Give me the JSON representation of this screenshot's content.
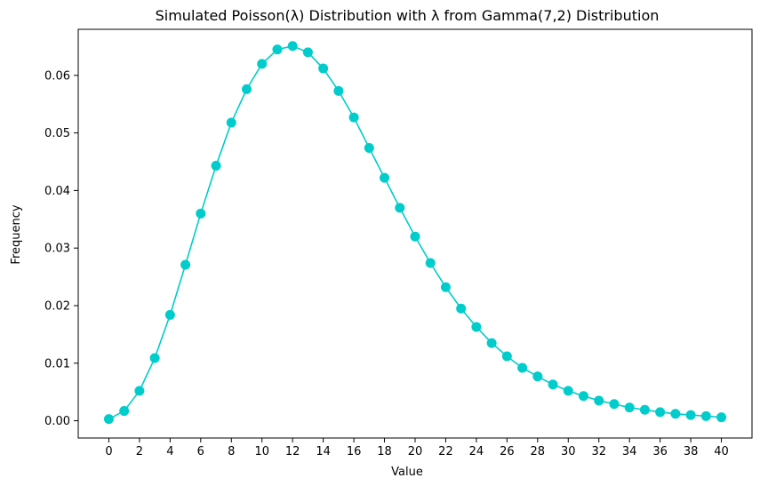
{
  "chart_data": {
    "type": "line",
    "title": "Simulated Poisson(λ) Distribution with λ from Gamma(7,2) Distribution",
    "xlabel": "Value",
    "ylabel": "Frequency",
    "xlim": [
      -2,
      42
    ],
    "ylim": [
      -0.003,
      0.068
    ],
    "x_ticks": [
      0,
      2,
      4,
      6,
      8,
      10,
      12,
      14,
      16,
      18,
      20,
      22,
      24,
      26,
      28,
      30,
      32,
      34,
      36,
      38,
      40
    ],
    "y_ticks": [
      0.0,
      0.01,
      0.02,
      0.03,
      0.04,
      0.05,
      0.06
    ],
    "y_tick_labels": [
      "0.00",
      "0.01",
      "0.02",
      "0.03",
      "0.04",
      "0.05",
      "0.06"
    ],
    "grid": false,
    "series": [
      {
        "color": "#00cccc",
        "marker": "circle",
        "x": [
          0,
          1,
          2,
          3,
          4,
          5,
          6,
          7,
          8,
          9,
          10,
          11,
          12,
          13,
          14,
          15,
          16,
          17,
          18,
          19,
          20,
          21,
          22,
          23,
          24,
          25,
          26,
          27,
          28,
          29,
          30,
          31,
          32,
          33,
          34,
          35,
          36,
          37,
          38,
          39,
          40
        ],
        "y": [
          0.0003,
          0.0017,
          0.0052,
          0.0109,
          0.0184,
          0.0271,
          0.036,
          0.0443,
          0.0518,
          0.0576,
          0.062,
          0.0645,
          0.0651,
          0.064,
          0.0612,
          0.0573,
          0.0527,
          0.0474,
          0.0422,
          0.037,
          0.032,
          0.0274,
          0.0232,
          0.0195,
          0.0163,
          0.0135,
          0.0112,
          0.0092,
          0.0077,
          0.0063,
          0.0052,
          0.0043,
          0.0035,
          0.0029,
          0.0023,
          0.0019,
          0.0015,
          0.0012,
          0.001,
          0.0008,
          0.0006
        ]
      }
    ]
  }
}
